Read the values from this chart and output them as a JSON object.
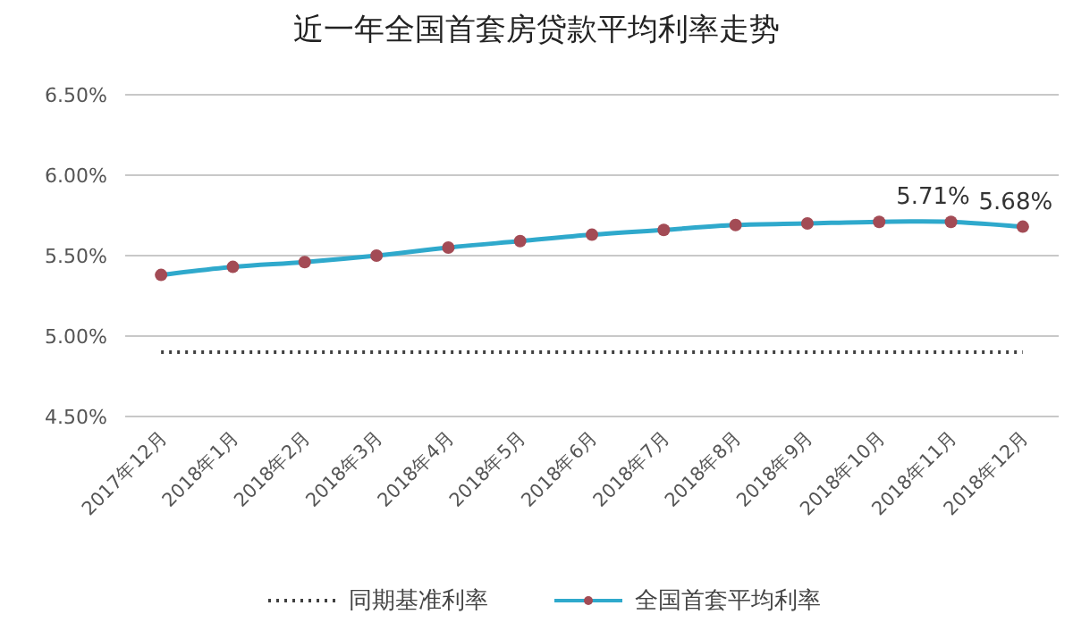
{
  "chart_data": {
    "type": "line",
    "title": "近一年全国首套房贷款平均利率走势",
    "categories": [
      "2017年12月",
      "2018年1月",
      "2018年2月",
      "2018年3月",
      "2018年4月",
      "2018年5月",
      "2018年6月",
      "2018年7月",
      "2018年8月",
      "2018年9月",
      "2018年10月",
      "2018年11月",
      "2018年12月"
    ],
    "series": [
      {
        "name": "同期基准利率",
        "color": "#404040",
        "line_style": "dotted",
        "marker": "none",
        "values": [
          4.9,
          4.9,
          4.9,
          4.9,
          4.9,
          4.9,
          4.9,
          4.9,
          4.9,
          4.9,
          4.9,
          4.9,
          4.9
        ]
      },
      {
        "name": "全国首套平均利率",
        "color": "#2fa9cc",
        "colors": [
          "#a34b55",
          "#a34b55",
          "#a34b55",
          "#a34b55",
          "#a34b55",
          "#a34b55",
          "#a34b55",
          "#a34b55",
          "#a34b55",
          "#a34b55",
          "#a34b55",
          "#a34b55",
          "#a34b55"
        ],
        "line_style": "solid",
        "marker": "circle",
        "values": [
          5.38,
          5.43,
          5.46,
          5.5,
          5.55,
          5.59,
          5.63,
          5.66,
          5.69,
          5.7,
          5.71,
          5.71,
          5.68
        ],
        "value_labels": [
          null,
          null,
          null,
          null,
          null,
          null,
          null,
          null,
          null,
          null,
          null,
          "5.71%",
          "5.68%"
        ]
      }
    ],
    "ylim": [
      4.5,
      6.5
    ],
    "yticks": [
      {
        "value": 4.5,
        "label": "4.50%"
      },
      {
        "value": 5,
        "label": "5.00%"
      },
      {
        "value": 5.5,
        "label": "5.50%"
      },
      {
        "value": 6,
        "label": "6.00%"
      },
      {
        "value": 6.5,
        "label": "6.50%"
      }
    ],
    "grid": "y",
    "legend": "bottom"
  }
}
